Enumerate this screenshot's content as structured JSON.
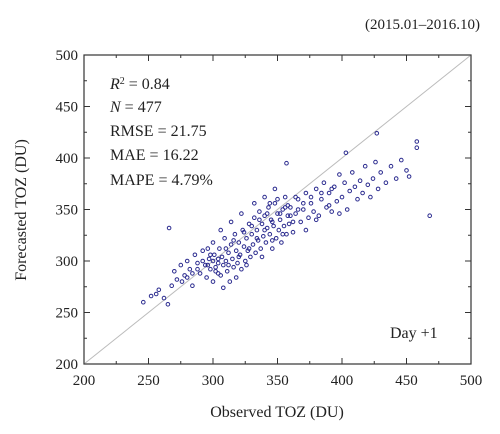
{
  "chart_data": {
    "type": "scatter",
    "period_label": "(2015.01–2016.10)",
    "xlabel": "Observed TOZ (DU)",
    "ylabel": "Forecasted TOZ (DU)",
    "xlim": [
      200,
      500
    ],
    "ylim": [
      200,
      500
    ],
    "xticks": [
      "200",
      "250",
      "300",
      "350",
      "400",
      "450",
      "500"
    ],
    "yticks": [
      "200",
      "250",
      "300",
      "350",
      "400",
      "450",
      "500"
    ],
    "reference_line": "1:1",
    "grid": false,
    "stats": {
      "r2_label": "R",
      "r2_sup": "2",
      "r2_value": " = 0.84",
      "n_label": "N",
      "n_value": " = 477",
      "rmse": "RMSE = 21.75",
      "mae": "MAE = 16.22",
      "mape": "MAPE = 4.79%"
    },
    "annotation": "Day +1",
    "marker_color": "#2b2b8f",
    "points": [
      [
        246,
        260
      ],
      [
        252,
        266
      ],
      [
        258,
        272
      ],
      [
        262,
        264
      ],
      [
        265,
        258
      ],
      [
        268,
        276
      ],
      [
        272,
        282
      ],
      [
        270,
        290
      ],
      [
        275,
        296
      ],
      [
        278,
        286
      ],
      [
        280,
        300
      ],
      [
        282,
        292
      ],
      [
        284,
        276
      ],
      [
        286,
        306
      ],
      [
        288,
        298
      ],
      [
        290,
        288
      ],
      [
        292,
        310
      ],
      [
        294,
        296
      ],
      [
        295,
        284
      ],
      [
        297,
        302
      ],
      [
        298,
        292
      ],
      [
        300,
        318
      ],
      [
        301,
        306
      ],
      [
        302,
        290
      ],
      [
        304,
        298
      ],
      [
        305,
        312
      ],
      [
        306,
        286
      ],
      [
        307,
        304
      ],
      [
        308,
        296
      ],
      [
        309,
        322
      ],
      [
        310,
        300
      ],
      [
        311,
        290
      ],
      [
        312,
        308
      ],
      [
        313,
        280
      ],
      [
        314,
        316
      ],
      [
        315,
        302
      ],
      [
        316,
        294
      ],
      [
        317,
        326
      ],
      [
        318,
        310
      ],
      [
        319,
        298
      ],
      [
        320,
        318
      ],
      [
        321,
        306
      ],
      [
        322,
        292
      ],
      [
        323,
        330
      ],
      [
        324,
        314
      ],
      [
        325,
        300
      ],
      [
        326,
        322
      ],
      [
        327,
        310
      ],
      [
        328,
        336
      ],
      [
        329,
        304
      ],
      [
        330,
        326
      ],
      [
        331,
        316
      ],
      [
        332,
        342
      ],
      [
        333,
        308
      ],
      [
        334,
        330
      ],
      [
        335,
        320
      ],
      [
        336,
        348
      ],
      [
        337,
        312
      ],
      [
        338,
        336
      ],
      [
        339,
        324
      ],
      [
        340,
        344
      ],
      [
        341,
        318
      ],
      [
        342,
        332
      ],
      [
        343,
        352
      ],
      [
        344,
        326
      ],
      [
        345,
        340
      ],
      [
        346,
        312
      ],
      [
        347,
        334
      ],
      [
        348,
        356
      ],
      [
        349,
        322
      ],
      [
        350,
        346
      ],
      [
        351,
        330
      ],
      [
        352,
        340
      ],
      [
        353,
        318
      ],
      [
        354,
        350
      ],
      [
        355,
        334
      ],
      [
        356,
        362
      ],
      [
        357,
        326
      ],
      [
        358,
        344
      ],
      [
        359,
        336
      ],
      [
        360,
        352
      ],
      [
        362,
        328
      ],
      [
        364,
        346
      ],
      [
        366,
        360
      ],
      [
        368,
        338
      ],
      [
        370,
        350
      ],
      [
        372,
        366
      ],
      [
        374,
        342
      ],
      [
        376,
        356
      ],
      [
        378,
        348
      ],
      [
        380,
        370
      ],
      [
        382,
        344
      ],
      [
        384,
        360
      ],
      [
        386,
        376
      ],
      [
        388,
        352
      ],
      [
        390,
        366
      ],
      [
        392,
        348
      ],
      [
        394,
        372
      ],
      [
        396,
        358
      ],
      [
        398,
        384
      ],
      [
        400,
        362
      ],
      [
        402,
        376
      ],
      [
        404,
        350
      ],
      [
        406,
        368
      ],
      [
        408,
        386
      ],
      [
        410,
        372
      ],
      [
        412,
        360
      ],
      [
        414,
        378
      ],
      [
        416,
        366
      ],
      [
        418,
        392
      ],
      [
        420,
        374
      ],
      [
        422,
        362
      ],
      [
        424,
        380
      ],
      [
        426,
        396
      ],
      [
        428,
        370
      ],
      [
        430,
        386
      ],
      [
        434,
        376
      ],
      [
        438,
        392
      ],
      [
        442,
        380
      ],
      [
        446,
        398
      ],
      [
        450,
        388
      ],
      [
        458,
        416
      ],
      [
        458,
        410
      ],
      [
        468,
        344
      ],
      [
        427,
        424
      ],
      [
        403,
        405
      ],
      [
        452,
        382
      ],
      [
        357,
        395
      ],
      [
        256,
        268
      ],
      [
        266,
        332
      ],
      [
        296,
        312
      ],
      [
        300,
        280
      ],
      [
        308,
        274
      ],
      [
        318,
        284
      ],
      [
        326,
        296
      ],
      [
        338,
        304
      ],
      [
        346,
        320
      ],
      [
        354,
        326
      ],
      [
        362,
        338
      ],
      [
        372,
        330
      ],
      [
        380,
        340
      ],
      [
        390,
        354
      ],
      [
        398,
        346
      ],
      [
        306,
        330
      ],
      [
        314,
        338
      ],
      [
        322,
        346
      ],
      [
        332,
        356
      ],
      [
        340,
        362
      ],
      [
        348,
        370
      ],
      [
        300,
        300
      ],
      [
        304,
        302
      ],
      [
        296,
        296
      ],
      [
        292,
        300
      ],
      [
        288,
        292
      ],
      [
        284,
        288
      ],
      [
        280,
        284
      ],
      [
        276,
        280
      ],
      [
        298,
        306
      ],
      [
        302,
        294
      ],
      [
        310,
        312
      ],
      [
        316,
        320
      ],
      [
        324,
        328
      ],
      [
        330,
        334
      ],
      [
        336,
        340
      ],
      [
        342,
        346
      ],
      [
        344,
        356
      ],
      [
        350,
        360
      ],
      [
        356,
        352
      ],
      [
        360,
        344
      ],
      [
        366,
        350
      ],
      [
        370,
        356
      ],
      [
        376,
        362
      ],
      [
        384,
        366
      ],
      [
        392,
        370
      ],
      [
        304,
        288
      ],
      [
        312,
        296
      ],
      [
        320,
        304
      ],
      [
        328,
        312
      ],
      [
        334,
        322
      ],
      [
        340,
        330
      ],
      [
        346,
        338
      ],
      [
        352,
        346
      ],
      [
        358,
        354
      ],
      [
        364,
        362
      ]
    ]
  }
}
